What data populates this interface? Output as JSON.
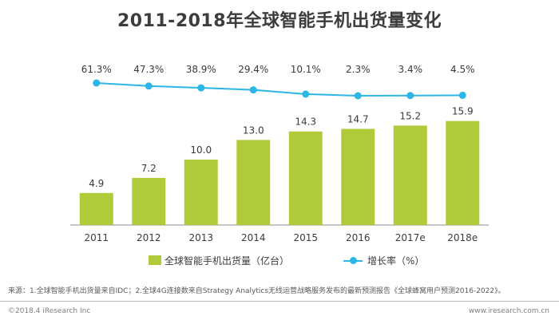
{
  "title": "2011-2018年全球智能手机出货量变化",
  "chart_data": {
    "type": "bar",
    "categories": [
      "2011",
      "2012",
      "2013",
      "2014",
      "2015",
      "2016",
      "2017e",
      "2018e"
    ],
    "series": [
      {
        "name": "全球智能手机出货量（亿台）",
        "type": "bar",
        "values": [
          4.9,
          7.2,
          10.0,
          13.0,
          14.3,
          14.7,
          15.2,
          15.9
        ],
        "labels": [
          "4.9",
          "7.2",
          "10.0",
          "13.0",
          "14.3",
          "14.7",
          "15.2",
          "15.9"
        ],
        "color": "#b0cb3a"
      },
      {
        "name": "增长率（%）",
        "type": "line",
        "values": [
          61.3,
          47.3,
          38.9,
          29.4,
          10.1,
          2.3,
          3.4,
          4.5
        ],
        "labels": [
          "61.3%",
          "47.3%",
          "38.9%",
          "29.4%",
          "10.1%",
          "2.3%",
          "3.4%",
          "4.5%"
        ],
        "color": "#2cb6e6"
      }
    ],
    "grid": false,
    "legend_position": "bottom"
  },
  "legend": {
    "bar_label": "全球智能手机出货量（亿台）",
    "line_label": "增长率（%）"
  },
  "source": "来源：1.全球智能手机出货量来自IDC；2.全球4G连接数来自Strategy Analytics无线运营战略服务发布的最新预测报告《全球蜂窝用户预测2016-2022》。",
  "copyright": "©2018.4 iResearch Inc",
  "website": "www.iresearch.com.cn"
}
